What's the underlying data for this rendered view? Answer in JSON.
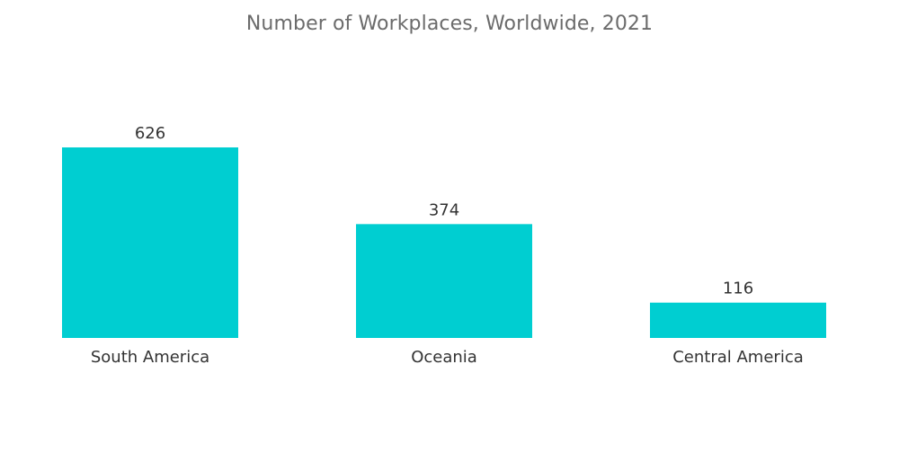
{
  "chart_data": {
    "type": "bar",
    "title": "Number of Workplaces, Worldwide, 2021",
    "categories": [
      "South America",
      "Oceania",
      "Central America"
    ],
    "values": [
      626,
      374,
      116
    ],
    "xlabel": "",
    "ylabel": "",
    "ylim": [
      0,
      626
    ],
    "grid": false,
    "legend": "none",
    "colors": {
      "bar": "#00ced1",
      "text": "#333333",
      "title": "#6b6b6b"
    }
  }
}
